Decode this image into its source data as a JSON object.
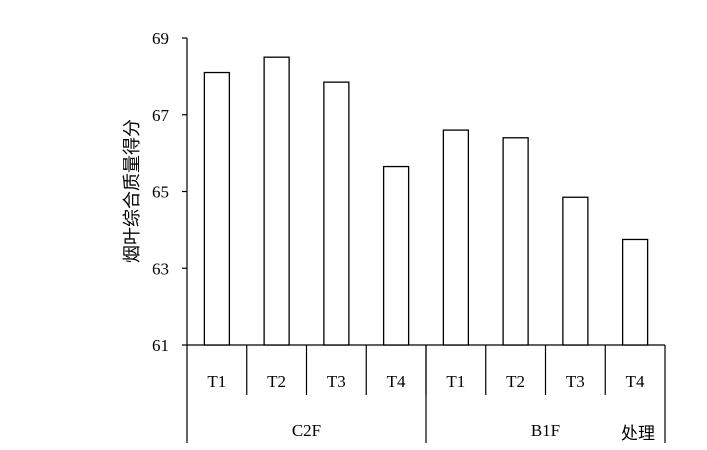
{
  "chart_data": {
    "type": "bar",
    "ylabel": "烟叶综合质量得分",
    "xlabel": "处理",
    "ylim": [
      61,
      69
    ],
    "yticks": [
      61,
      63,
      65,
      67,
      69
    ],
    "grid": false,
    "bar_fill": "#ffffff",
    "bar_stroke": "#000000",
    "groups": [
      {
        "name": "C2F",
        "categories": [
          "T1",
          "T2",
          "T3",
          "T4"
        ],
        "values": [
          68.1,
          68.5,
          67.85,
          65.65
        ]
      },
      {
        "name": "B1F",
        "categories": [
          "T1",
          "T2",
          "T3",
          "T4"
        ],
        "values": [
          66.6,
          66.4,
          64.85,
          63.75
        ]
      }
    ]
  }
}
